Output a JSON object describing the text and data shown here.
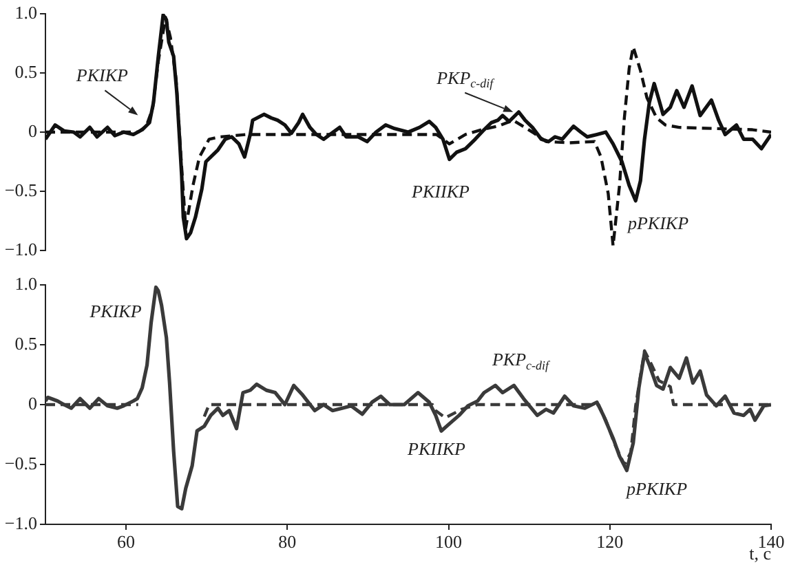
{
  "chart_data": [
    {
      "type": "line",
      "xlim": [
        50,
        140
      ],
      "ylim": [
        -1,
        1
      ],
      "yticks": [
        {
          "value": -1,
          "label": "−1.0"
        },
        {
          "value": -0.5,
          "label": "−0.5"
        },
        {
          "value": 0,
          "label": "0"
        },
        {
          "value": 0.5,
          "label": "0.5"
        },
        {
          "value": 1,
          "label": "1.0"
        }
      ],
      "tick_labels": "y",
      "series": [
        {
          "color": "#111111",
          "x": [
            50,
            51.2,
            52.3,
            53.5,
            54.3,
            55.5,
            56.4,
            57.7,
            58.6,
            59.7,
            60.9,
            62,
            62.9,
            63.4,
            64,
            64.6,
            65,
            65.3,
            65.9,
            66.3,
            66.9,
            67.1,
            67.5,
            68,
            68.6,
            69.4,
            69.9,
            70.5,
            71.4,
            72.3,
            73.1,
            74,
            74.7,
            75.4,
            75.7,
            77.1,
            78,
            78.8,
            79.7,
            80.5,
            81.4,
            81.9,
            82.8,
            83.6,
            84.5,
            85.3,
            86.5,
            87.3,
            88.8,
            89.9,
            91,
            92.2,
            93.3,
            95,
            96.4,
            97.6,
            98.4,
            99.3,
            100.1,
            101,
            102.1,
            103.3,
            104.4,
            105.3,
            106.1,
            106.7,
            107.5,
            108.7,
            109.5,
            110.4,
            111.5,
            112.4,
            113.2,
            114.1,
            115.5,
            116.4,
            117.2,
            118.4,
            119.5,
            120.4,
            121.5,
            122.4,
            123.2,
            123.8,
            124.3,
            124.9,
            125.5,
            126.1,
            126.6,
            127.5,
            128.3,
            129.2,
            130.2,
            131.2,
            132.6,
            133.5,
            134.3,
            135.7,
            136.6,
            137.7,
            138.8,
            140
          ],
          "values": [
            -0.06,
            0.06,
            0.01,
            0,
            -0.04,
            0.04,
            -0.04,
            0.04,
            -0.03,
            0,
            -0.02,
            0.02,
            0.08,
            0.25,
            0.64,
            0.99,
            0.95,
            0.76,
            0.64,
            0.33,
            -0.37,
            -0.72,
            -0.9,
            -0.85,
            -0.72,
            -0.48,
            -0.25,
            -0.21,
            -0.15,
            -0.06,
            -0.04,
            -0.1,
            -0.21,
            -0.02,
            0.1,
            0.15,
            0.12,
            0.1,
            0.06,
            -0.01,
            0.08,
            0.15,
            0.04,
            -0.02,
            -0.06,
            -0.02,
            0.04,
            -0.04,
            -0.04,
            -0.08,
            0,
            0.06,
            0.03,
            0,
            0.04,
            0.09,
            0.04,
            -0.06,
            -0.23,
            -0.17,
            -0.14,
            -0.06,
            0.02,
            0.08,
            0.1,
            0.14,
            0.09,
            0.17,
            0.1,
            0.04,
            -0.06,
            -0.08,
            -0.04,
            -0.06,
            0.05,
            0,
            -0.04,
            -0.02,
            0,
            -0.1,
            -0.25,
            -0.45,
            -0.58,
            -0.41,
            -0.06,
            0.25,
            0.41,
            0.27,
            0.15,
            0.21,
            0.35,
            0.21,
            0.39,
            0.14,
            0.27,
            0.1,
            -0.02,
            0.06,
            -0.06,
            -0.06,
            -0.14,
            -0.02
          ]
        },
        {
          "color": "#111111",
          "line_style": "dashed",
          "x": [
            50,
            61.5,
            62.5,
            63.3,
            64,
            64.9,
            65.5,
            66.2,
            66.8,
            67.4,
            68.3,
            69.1,
            70.3,
            71.7,
            75,
            98.5,
            100.1,
            102.1,
            104.1,
            106.1,
            108,
            110.4,
            112.1,
            115,
            118.1,
            118.9,
            119.8,
            120.4,
            121.2,
            121.8,
            122.4,
            122.9,
            123.8,
            124.6,
            125.8,
            126.9,
            128.6,
            137.7,
            140
          ],
          "values": [
            0,
            0,
            0.05,
            0.2,
            0.6,
            0.97,
            0.8,
            0.45,
            -0.2,
            -0.81,
            -0.45,
            -0.21,
            -0.06,
            -0.04,
            -0.02,
            -0.02,
            -0.1,
            -0.02,
            0.02,
            0.05,
            0.1,
            0,
            -0.08,
            -0.09,
            -0.08,
            -0.21,
            -0.52,
            -0.96,
            -0.45,
            0.12,
            0.54,
            0.72,
            0.52,
            0.29,
            0.12,
            0.06,
            0.04,
            0.02,
            0
          ]
        }
      ],
      "annotations": [
        {
          "text": "PKIKP",
          "x": 62.5,
          "y": 0.05
        },
        {
          "text": "PKP$_{c-dif}$",
          "x": 108,
          "y": 0.17
        },
        "PKIIKP",
        "pPKIKP"
      ]
    },
    {
      "type": "line",
      "xlim": [
        50,
        140
      ],
      "xticks": [
        60,
        80,
        100,
        120,
        140
      ],
      "ylim": [
        -1,
        1
      ],
      "yticks": [
        {
          "value": -1,
          "label": "−1.0"
        },
        {
          "value": -0.5,
          "label": "−0.5"
        },
        {
          "value": 0,
          "label": "0"
        },
        {
          "value": 0.5,
          "label": "0.5"
        },
        {
          "value": 1,
          "label": "1.0"
        }
      ],
      "xlabel": "t, c",
      "series": [
        {
          "color": "#3a3a3a",
          "x": [
            50,
            50.3,
            51.5,
            52.3,
            53.2,
            54.3,
            55.5,
            56.6,
            57.7,
            58.9,
            59.7,
            60.9,
            61.4,
            62,
            62.6,
            63.1,
            63.7,
            64,
            64.4,
            65,
            65.4,
            65.9,
            66.4,
            66.9,
            67.4,
            68.2,
            68.8,
            69.7,
            70.5,
            71.4,
            72,
            72.8,
            73.7,
            74.5,
            75.4,
            76.2,
            77.4,
            78.5,
            79.7,
            80.8,
            81.9,
            83.4,
            84.5,
            85.6,
            86.8,
            87.9,
            89.3,
            90.5,
            91.6,
            92.7,
            94.5,
            96.2,
            97.6,
            98.4,
            99.1,
            100.1,
            101.3,
            102.4,
            103.6,
            104.4,
            105.8,
            106.7,
            108.1,
            109.3,
            111,
            112.1,
            113,
            114.4,
            115.5,
            116.9,
            118.4,
            119.2,
            120.4,
            121.2,
            122.1,
            122.9,
            123.6,
            124.3,
            124.9,
            125.8,
            126.6,
            127.5,
            128.6,
            129.5,
            130.3,
            131.2,
            132,
            133.2,
            134.3,
            135.4,
            136.6,
            137.4,
            138,
            139.1,
            140
          ],
          "values": [
            0.03,
            0.06,
            0.03,
            0,
            -0.03,
            0.05,
            -0.03,
            0.05,
            -0.01,
            -0.03,
            -0.01,
            0.03,
            0.05,
            0.14,
            0.33,
            0.68,
            0.98,
            0.95,
            0.83,
            0.56,
            0.18,
            -0.39,
            -0.85,
            -0.87,
            -0.7,
            -0.51,
            -0.22,
            -0.18,
            -0.09,
            -0.03,
            -0.09,
            -0.05,
            -0.2,
            0.1,
            0.12,
            0.17,
            0.12,
            0.1,
            0,
            0.16,
            0.08,
            -0.05,
            0,
            -0.05,
            -0.03,
            -0.01,
            -0.08,
            0.02,
            0.07,
            0,
            0,
            0.1,
            0.02,
            -0.09,
            -0.22,
            -0.16,
            -0.09,
            -0.01,
            0.03,
            0.1,
            0.16,
            0.1,
            0.16,
            0.05,
            -0.09,
            -0.04,
            -0.07,
            0.07,
            -0.01,
            -0.03,
            0.02,
            -0.09,
            -0.28,
            -0.43,
            -0.55,
            -0.32,
            0.14,
            0.43,
            0.33,
            0.16,
            0.13,
            0.31,
            0.22,
            0.39,
            0.18,
            0.28,
            0.08,
            -0.01,
            0.07,
            -0.07,
            -0.09,
            -0.04,
            -0.13,
            -0.01,
            0
          ]
        },
        {
          "color": "#3a3a3a",
          "line_style": "dashed",
          "x": [
            50,
            61.5,
            65,
            69.7,
            70.3,
            98,
            98.4,
            99.6,
            101.6,
            103.6,
            118.6,
            119.5,
            120.6,
            121.8,
            122.6,
            123.2,
            124.3,
            125.2,
            126.1,
            127.5,
            127.9,
            140
          ],
          "values": [
            0,
            0,
            null,
            -0.1,
            0,
            0,
            -0.05,
            -0.11,
            -0.04,
            0,
            0,
            -0.13,
            -0.33,
            -0.5,
            -0.4,
            -0.01,
            0.45,
            0.33,
            0.2,
            0.15,
            0,
            0
          ]
        }
      ],
      "annotations": [
        "PKIKP",
        "PKP$_{c-dif}$",
        "PKIIKP",
        "pPKIKP"
      ]
    }
  ]
}
